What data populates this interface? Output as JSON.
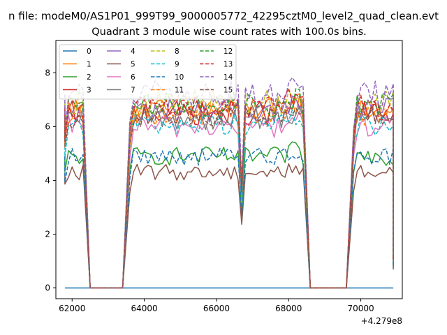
{
  "figure": {
    "suptitle": "n file: modeM0/AS1P01_999T99_9000005772_42295cztM0_level2_quad_clean.evt",
    "offset_label": "+4.279e8"
  },
  "chart_data": {
    "type": "line",
    "title": "Quadrant 3 module wise count rates with 100.0s bins.",
    "xlabel": "",
    "ylabel": "",
    "x_offset": 427900000,
    "xlim": [
      61550,
      71150
    ],
    "ylim": [
      -0.4,
      9.2
    ],
    "xticks": [
      62000,
      64000,
      66000,
      68000,
      70000
    ],
    "xtick_labels": [
      "62000",
      "64000",
      "66000",
      "68000",
      "70000"
    ],
    "yticks": [
      0,
      2,
      4,
      6,
      8
    ],
    "ytick_labels": [
      "0",
      "2",
      "4",
      "6",
      "8"
    ],
    "grid": false,
    "legend_placement": "upper-left",
    "legend_columns": 4,
    "segments": [
      [
        61800,
        62300
      ],
      [
        63600,
        68400
      ],
      [
        69800,
        70900
      ]
    ],
    "series": [
      {
        "name": "0",
        "color": "#1f77b4",
        "dash": "solid",
        "level": 0.0
      },
      {
        "name": "1",
        "color": "#ff7f0e",
        "dash": "solid",
        "level": 6.6
      },
      {
        "name": "2",
        "color": "#2ca02c",
        "dash": "solid",
        "level": 4.9
      },
      {
        "name": "3",
        "color": "#d62728",
        "dash": "solid",
        "level": 6.5
      },
      {
        "name": "4",
        "color": "#9467bd",
        "dash": "solid",
        "level": 6.6
      },
      {
        "name": "5",
        "color": "#8c564b",
        "dash": "solid",
        "level": 4.3
      },
      {
        "name": "6",
        "color": "#e377c2",
        "dash": "solid",
        "level": 6.0
      },
      {
        "name": "7",
        "color": "#7f7f7f",
        "dash": "solid",
        "level": 6.3
      },
      {
        "name": "8",
        "color": "#bcbd22",
        "dash": "dashed",
        "level": 6.9
      },
      {
        "name": "9",
        "color": "#17becf",
        "dash": "dashed",
        "level": 6.1
      },
      {
        "name": "10",
        "color": "#1f77b4",
        "dash": "dashed",
        "level": 4.9
      },
      {
        "name": "11",
        "color": "#ff7f0e",
        "dash": "dashed",
        "level": 6.5
      },
      {
        "name": "12",
        "color": "#2ca02c",
        "dash": "dashed",
        "level": 6.8
      },
      {
        "name": "13",
        "color": "#d62728",
        "dash": "dashed",
        "level": 6.7
      },
      {
        "name": "14",
        "color": "#9467bd",
        "dash": "dashed",
        "level": 7.2
      },
      {
        "name": "15",
        "color": "#8c564b",
        "dash": "dashed",
        "level": 6.4
      }
    ]
  }
}
